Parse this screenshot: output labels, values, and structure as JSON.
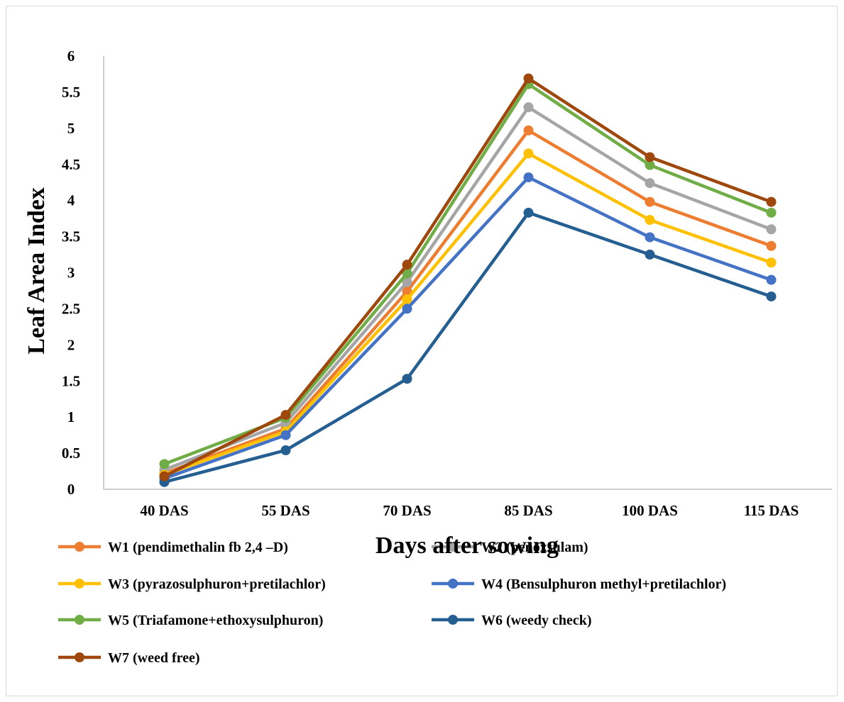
{
  "chart_data": {
    "type": "line",
    "categories": [
      "40 DAS",
      "55 DAS",
      "70 DAS",
      "85 DAS",
      "100 DAS",
      "115 DAS"
    ],
    "xlabel": "Days after sowing",
    "ylabel": "Leaf Area Index",
    "ylim": [
      0,
      6
    ],
    "yticks": [
      "0",
      "0.5",
      "1",
      "1.5",
      "2",
      "2.5",
      "3",
      "3.5",
      "4",
      "4.5",
      "5",
      "5.5",
      "6"
    ],
    "grid": false,
    "legend_position": "bottom",
    "series": [
      {
        "name": "W1 (pendimethalin fb 2,4 –D)",
        "color": "#ED7D31",
        "values": [
          0.22,
          0.84,
          2.74,
          4.97,
          3.98,
          3.37
        ]
      },
      {
        "name": "W2 (penoxsulam)",
        "color": "#A5A5A5",
        "values": [
          0.27,
          0.92,
          2.87,
          5.29,
          4.24,
          3.6
        ]
      },
      {
        "name": "W3 (pyrazosulphuron+pretilachlor)",
        "color": "#FFC000",
        "values": [
          0.2,
          0.8,
          2.63,
          4.65,
          3.73,
          3.14
        ]
      },
      {
        "name": "W4 (Bensulphuron methyl+pretilachlor)",
        "color": "#4472C4",
        "values": [
          0.15,
          0.75,
          2.5,
          4.32,
          3.49,
          2.9
        ]
      },
      {
        "name": "W5 (Triafamone+ethoxysulphuron)",
        "color": "#70AD47",
        "values": [
          0.35,
          0.99,
          2.99,
          5.61,
          4.49,
          3.83
        ]
      },
      {
        "name": "W6 (weedy check)",
        "color": "#255E91",
        "values": [
          0.1,
          0.54,
          1.53,
          3.83,
          3.25,
          2.67
        ]
      },
      {
        "name": "W7 (weed free)",
        "color": "#9E480E",
        "values": [
          0.18,
          1.03,
          3.11,
          5.69,
          4.6,
          3.98
        ]
      }
    ]
  }
}
